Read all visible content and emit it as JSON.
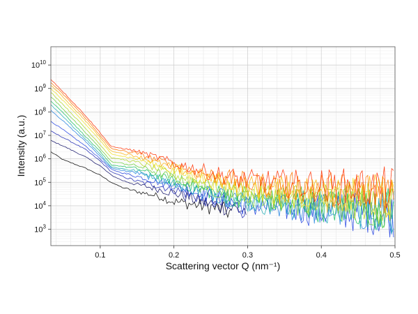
{
  "chart_data": {
    "type": "line",
    "title": "",
    "xlabel": "Scattering vector Q (nm⁻¹)",
    "ylabel": "Intensity (a.u.)",
    "x_scale": "linear",
    "y_scale": "log",
    "xlim": [
      0.033,
      0.5
    ],
    "ylim": [
      200,
      60000000000
    ],
    "grid": true,
    "legend": "none",
    "x_ticks": [
      {
        "value": 0.1,
        "label": "0.1"
      },
      {
        "value": 0.2,
        "label": "0.2"
      },
      {
        "value": 0.3,
        "label": "0.3"
      },
      {
        "value": 0.4,
        "label": "0.4"
      },
      {
        "value": 0.5,
        "label": "0.5"
      }
    ],
    "y_ticks": [
      {
        "value": 1000,
        "base": "10",
        "exp": "3"
      },
      {
        "value": 10000,
        "base": "10",
        "exp": "4"
      },
      {
        "value": 100000,
        "base": "10",
        "exp": "5"
      },
      {
        "value": 1000000,
        "base": "10",
        "exp": "6"
      },
      {
        "value": 10000000,
        "base": "10",
        "exp": "7"
      },
      {
        "value": 100000000,
        "base": "10",
        "exp": "8"
      },
      {
        "value": 1000000000,
        "base": "10",
        "exp": "9"
      },
      {
        "value": 10000000000,
        "base": "10",
        "exp": "10"
      }
    ],
    "series_colors": [
      "#000000",
      "#1a1a9a",
      "#1f3fe0",
      "#1fa0e0",
      "#18c060",
      "#8cd020",
      "#f0e020",
      "#ff9a00",
      "#ff3000"
    ],
    "series": [
      {
        "x": [
          0.033,
          0.05,
          0.08,
          0.1,
          0.115,
          0.13,
          0.15,
          0.18,
          0.2,
          0.25,
          0.28
        ],
        "y": [
          2000000,
          900000,
          400000,
          200000,
          100000,
          60000,
          40000,
          25000,
          15000,
          9000,
          5000
        ]
      },
      {
        "x": [
          0.033,
          0.05,
          0.08,
          0.1,
          0.115,
          0.13,
          0.15,
          0.18,
          0.2,
          0.25,
          0.3
        ],
        "y": [
          6000000,
          3500000,
          1200000,
          500000,
          200000,
          120000,
          80000,
          50000,
          35000,
          12000,
          6000
        ]
      },
      {
        "x": [
          0.033,
          0.05,
          0.08,
          0.1,
          0.115,
          0.13,
          0.15,
          0.18,
          0.2,
          0.25,
          0.3
        ],
        "y": [
          15000000,
          8000000,
          2500000,
          800000,
          280000,
          180000,
          110000,
          70000,
          50000,
          16000,
          7000
        ]
      },
      {
        "x": [
          0.033,
          0.05,
          0.08,
          0.1,
          0.115,
          0.13,
          0.15,
          0.18,
          0.2,
          0.25,
          0.3,
          0.35,
          0.4,
          0.45,
          0.5
        ],
        "y": [
          40000000,
          17000000,
          3500000,
          1000000,
          350000,
          250000,
          180000,
          100000,
          70000,
          25000,
          10000,
          8000,
          6000,
          5000,
          4000
        ]
      },
      {
        "x": [
          0.033,
          0.05,
          0.08,
          0.1,
          0.115,
          0.13,
          0.15,
          0.18,
          0.2,
          0.25,
          0.3,
          0.35,
          0.4,
          0.45,
          0.5
        ],
        "y": [
          120000000,
          40000000,
          5500000,
          1300000,
          400000,
          320000,
          250000,
          120000,
          80000,
          30000,
          12000,
          9000,
          7000,
          6000,
          5000
        ]
      },
      {
        "x": [
          0.033,
          0.05,
          0.08,
          0.1,
          0.115,
          0.13,
          0.15,
          0.18,
          0.2,
          0.25,
          0.3,
          0.35,
          0.4,
          0.45,
          0.5
        ],
        "y": [
          200000000,
          60000000,
          7000000,
          1600000,
          450000,
          380000,
          300000,
          150000,
          90000,
          35000,
          15000,
          12000,
          9000,
          7000,
          6000
        ]
      },
      {
        "x": [
          0.033,
          0.05,
          0.08,
          0.1,
          0.115,
          0.13,
          0.15,
          0.18,
          0.2,
          0.25,
          0.3,
          0.35,
          0.4,
          0.45,
          0.5
        ],
        "y": [
          300000000,
          90000000,
          9000000,
          2000000,
          550000,
          480000,
          380000,
          180000,
          110000,
          40000,
          18000,
          14000,
          10000,
          8500,
          7000
        ]
      },
      {
        "x": [
          0.033,
          0.05,
          0.08,
          0.1,
          0.115,
          0.13,
          0.15,
          0.18,
          0.2,
          0.25,
          0.3,
          0.35,
          0.4,
          0.45,
          0.5
        ],
        "y": [
          450000000,
          130000000,
          13000000,
          2800000,
          750000,
          650000,
          500000,
          250000,
          150000,
          55000,
          25000,
          18000,
          14000,
          11000,
          9000
        ]
      },
      {
        "x": [
          0.033,
          0.05,
          0.08,
          0.1,
          0.115,
          0.13,
          0.15,
          0.18,
          0.2,
          0.25,
          0.3,
          0.35,
          0.4,
          0.45,
          0.5
        ],
        "y": [
          700000000,
          200000000,
          20000000,
          4000000,
          1100000,
          950000,
          700000,
          350000,
          200000,
          80000,
          35000,
          25000,
          20000,
          16000,
          12000
        ]
      },
      {
        "x": [
          0.033,
          0.05,
          0.08,
          0.1,
          0.115,
          0.13,
          0.15,
          0.18,
          0.2,
          0.25,
          0.3,
          0.35,
          0.4,
          0.45,
          0.5
        ],
        "y": [
          1000000000,
          300000000,
          30000000,
          6000000,
          1600000,
          1300000,
          1000000,
          500000,
          300000,
          110000,
          50000,
          35000,
          28000,
          22000,
          18000
        ]
      },
      {
        "x": [
          0.033,
          0.05,
          0.08,
          0.1,
          0.115,
          0.13,
          0.15,
          0.18,
          0.2,
          0.25,
          0.3,
          0.35,
          0.4,
          0.45,
          0.5
        ],
        "y": [
          1400000000,
          420000000,
          42000000,
          8000000,
          2100000,
          1700000,
          1300000,
          650000,
          400000,
          150000,
          70000,
          50000,
          40000,
          32000,
          26000
        ]
      },
      {
        "x": [
          0.033,
          0.05,
          0.08,
          0.1,
          0.115,
          0.13,
          0.15,
          0.18,
          0.2,
          0.25,
          0.3,
          0.35,
          0.4,
          0.45,
          0.5
        ],
        "y": [
          1800000000,
          550000000,
          55000000,
          10000000,
          2700000,
          2200000,
          1700000,
          850000,
          520000,
          200000,
          95000,
          70000,
          55000,
          45000,
          38000
        ]
      },
      {
        "x": [
          0.033,
          0.05,
          0.08,
          0.1,
          0.115,
          0.13,
          0.15,
          0.18,
          0.2,
          0.25,
          0.3,
          0.35,
          0.4,
          0.45,
          0.5
        ],
        "y": [
          2500000000,
          700000000,
          70000000,
          13000000,
          3300000,
          2800000,
          2100000,
          1100000,
          650000,
          250000,
          120000,
          90000,
          70000,
          60000,
          50000
        ]
      }
    ]
  }
}
